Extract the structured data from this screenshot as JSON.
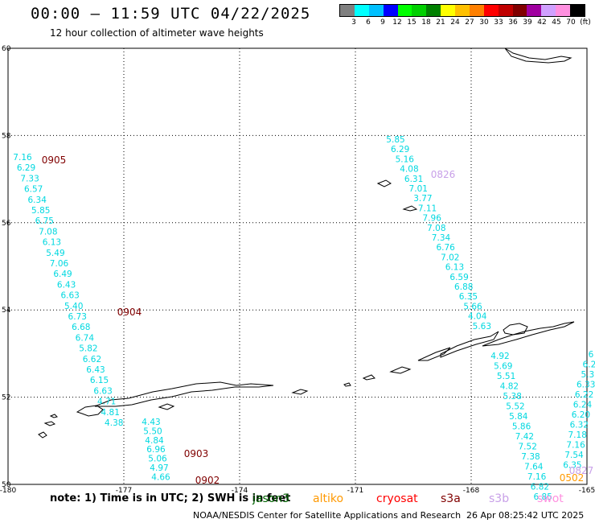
{
  "header": {
    "title": "00:00 – 11:59 UTC 04/22/2025",
    "subtitle": "12 hour collection of altimeter wave heights"
  },
  "legend": {
    "colors": [
      "#808080",
      "#00ffff",
      "#00c0ff",
      "#0000ff",
      "#00ff00",
      "#00d000",
      "#008000",
      "#ffff00",
      "#ffc000",
      "#ff8000",
      "#ff0000",
      "#c00000",
      "#800000",
      "#a000a0",
      "#d0a0ff",
      "#ff90e0",
      "#000000"
    ],
    "labels": [
      "3",
      "6",
      "9",
      "12",
      "15",
      "18",
      "21",
      "24",
      "27",
      "30",
      "33",
      "36",
      "39",
      "42",
      "45",
      "70",
      "(ft)"
    ]
  },
  "map": {
    "lon_labels": [
      "-180",
      "-177",
      "-174",
      "-171",
      "-168",
      "-165"
    ],
    "lat_labels": [
      "60",
      "58",
      "56",
      "54",
      "52",
      "50"
    ],
    "colors": {
      "swh": "#00d8e0",
      "time_maroon": "#800000",
      "time_lavender": "#c8a0e8",
      "time_orange": "#ff9900"
    }
  },
  "tracks": [
    {
      "id": "track-0905",
      "values": [
        "7.16",
        "6.29",
        "7.33",
        "6.57",
        "6.34",
        "5.85",
        "6.75",
        "7.08",
        "6.13",
        "5.49",
        "7.06",
        "6.49",
        "6.43",
        "6.63",
        "5.40",
        "6.73",
        "6.68",
        "6.74",
        "5.82",
        "6.62",
        "6.43",
        "6.15",
        "6.63",
        "4.71",
        "4.81",
        "4.38"
      ]
    },
    {
      "id": "track-0903",
      "values": [
        "4.43",
        "5.50",
        "4.84",
        "6.96",
        "5.06",
        "4.97",
        "4.66"
      ]
    },
    {
      "id": "track-0826",
      "values": [
        "5.85",
        "6.29",
        "5.16",
        "4.08",
        "6.31",
        "7.01",
        "3.77",
        "7.11",
        "7.96",
        "7.08",
        "7.34",
        "6.76",
        "7.02",
        "6.13",
        "6.59",
        "6.88",
        "6.35",
        "5.66",
        "4.04",
        "5.63"
      ]
    },
    {
      "id": "track-lower",
      "values": [
        "4.92",
        "5.69",
        "5.51",
        "4.82",
        "5.38",
        "5.52",
        "5.84",
        "5.86",
        "7.42",
        "7.52",
        "7.38",
        "7.64",
        "7.16",
        "6.82",
        "6.85"
      ]
    },
    {
      "id": "track-right",
      "values": [
        "6",
        "6.2",
        "5.3",
        "6.33",
        "6.22",
        "6.24",
        "6.20",
        "6.32",
        "7.18",
        "7.16",
        "7.54",
        "6.35"
      ]
    }
  ],
  "time_labels": [
    {
      "text": "0905",
      "color": "#800000"
    },
    {
      "text": "0904",
      "color": "#800000"
    },
    {
      "text": "0903",
      "color": "#800000"
    },
    {
      "text": "0902",
      "color": "#800000"
    },
    {
      "text": "0826",
      "color": "#c8a0e8"
    },
    {
      "text": "0827",
      "color": "#c8a0e8"
    },
    {
      "text": "0502",
      "color": "#ff9900"
    }
  ],
  "footer": {
    "note": "note: 1) Time is in UTC; 2) SWH is in feet",
    "satellites": [
      {
        "name": "jason3",
        "color": "#006400"
      },
      {
        "name": "altiko",
        "color": "#ff9900"
      },
      {
        "name": "cryosat",
        "color": "#ff0000"
      },
      {
        "name": "s3a",
        "color": "#800000"
      },
      {
        "name": "s3b",
        "color": "#c8a0e8"
      },
      {
        "name": "swot",
        "color": "#ff90e0"
      }
    ],
    "credit": "NOAA/NESDIS Center for Satellite Applications and Research",
    "timestamp": "26 Apr 08:25:42 UTC 2025"
  }
}
